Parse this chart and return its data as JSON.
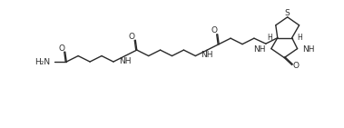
{
  "bg_color": "#ffffff",
  "line_color": "#2a2a2a",
  "line_width": 1.0,
  "font_size_label": 6.5,
  "font_size_small": 5.5,
  "xlim": [
    0,
    38
  ],
  "ylim": [
    0,
    14
  ]
}
